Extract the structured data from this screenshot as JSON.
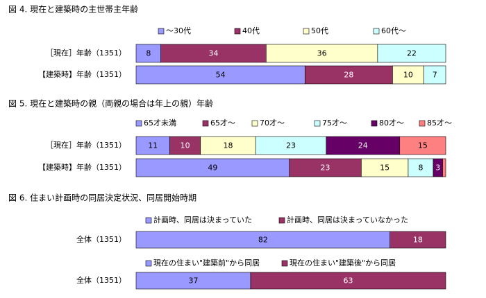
{
  "palette": {
    "blue": "#9999ff",
    "maroon": "#993366",
    "cream": "#ffffcc",
    "cyan": "#ccffff",
    "purple": "#660066",
    "salmon": "#ff8080"
  },
  "chart_data": [
    {
      "type": "bar",
      "orientation": "horizontal",
      "stacked": true,
      "title": "図 4.  現在と建築時の主世帯主年齢",
      "legend_position": "top",
      "categories": [
        "［現在］年齢（1351）",
        "【建築時】年齢（1351）"
      ],
      "series": [
        {
          "name": "～30代",
          "color": "#9999ff",
          "values": [
            8,
            54
          ]
        },
        {
          "name": "40代",
          "color": "#993366",
          "values": [
            34,
            28
          ]
        },
        {
          "name": "50代",
          "color": "#ffffcc",
          "values": [
            36,
            10
          ]
        },
        {
          "name": "60代～",
          "color": "#ccffff",
          "values": [
            22,
            7
          ]
        }
      ]
    },
    {
      "type": "bar",
      "orientation": "horizontal",
      "stacked": true,
      "title": "図 5.  現在と建築時の親（両親の場合は年上の親）年齢",
      "legend_position": "top",
      "categories": [
        "［現在］年齢（1351）",
        "【建築時】年齢（1351）"
      ],
      "series": [
        {
          "name": "65才未満",
          "color": "#9999ff",
          "values": [
            11,
            49
          ]
        },
        {
          "name": "65才～",
          "color": "#993366",
          "values": [
            10,
            23
          ]
        },
        {
          "name": "70才～",
          "color": "#ffffcc",
          "values": [
            18,
            15
          ]
        },
        {
          "name": "75才～",
          "color": "#ccffff",
          "values": [
            23,
            8
          ]
        },
        {
          "name": "80才～",
          "color": "#660066",
          "values": [
            24,
            3
          ]
        },
        {
          "name": "85才～",
          "color": "#ff8080",
          "values": [
            15,
            1
          ]
        }
      ]
    },
    {
      "type": "bar",
      "orientation": "horizontal",
      "stacked": true,
      "title": "図 6.  住まい計画時の同居決定状況、同居開始時期",
      "legend_position": "top",
      "categories": [
        "全体（1351）"
      ],
      "series": [
        {
          "name": "計画時、同居は決まっていた",
          "color": "#9999ff",
          "values": [
            82
          ]
        },
        {
          "name": "計画時、同居は決まっていなかった",
          "color": "#993366",
          "values": [
            18
          ]
        }
      ]
    },
    {
      "type": "bar",
      "orientation": "horizontal",
      "stacked": true,
      "title": "",
      "legend_position": "top",
      "categories": [
        "全体（1351）"
      ],
      "series": [
        {
          "name": "現在の住まい\"建築前\"から同居",
          "color": "#9999ff",
          "values": [
            37
          ]
        },
        {
          "name": "現在の住まい\"建築後\"から同居",
          "color": "#993366",
          "values": [
            63
          ]
        }
      ]
    }
  ]
}
